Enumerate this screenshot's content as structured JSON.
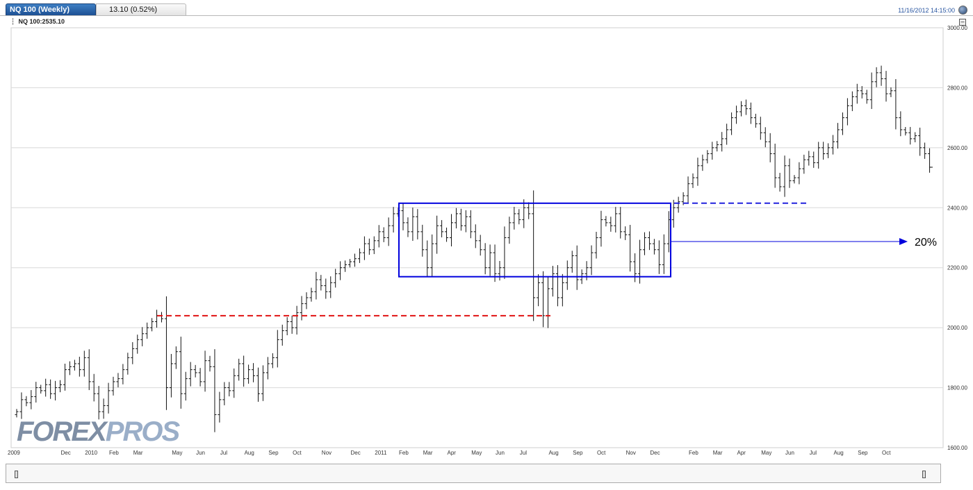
{
  "header": {
    "tab_title": "NQ 100 (Weekly)",
    "tab_change": "13.10 (0.52%)",
    "datetime": "11/16/2012 14:15:00",
    "symbol_label": "NQ 100:2535.10"
  },
  "logo": {
    "part1": "FOREX",
    "part2": "PROS"
  },
  "annotation": {
    "label": "20%"
  },
  "colors": {
    "box": "#0000dd",
    "red_dashed": "#e01010",
    "blue_dashed": "#2020dd",
    "bars": "#111111",
    "grid": "#d8d8d8",
    "nav_fill": "#7892d8",
    "nav_line": "#1f44c0"
  },
  "chart_data": {
    "type": "ohlc-bar",
    "title": "NQ 100 (Weekly)",
    "ylim": [
      1600,
      3000
    ],
    "y_ticks": [
      1600,
      1800,
      2000,
      2200,
      2400,
      2600,
      2800,
      3000
    ],
    "y_tick_labels": [
      "1600.00",
      "1800.00",
      "2000.00",
      "2200.00",
      "2400.00",
      "2600.00",
      "2800.00",
      "3000.00"
    ],
    "x_labels": [
      {
        "label": "2009",
        "week": 0
      },
      {
        "label": "Dec",
        "week": 10
      },
      {
        "label": "2010",
        "week": 15
      },
      {
        "label": "Feb",
        "week": 20
      },
      {
        "label": "Mar",
        "week": 25
      },
      {
        "label": "May",
        "week": 33
      },
      {
        "label": "Jun",
        "week": 38
      },
      {
        "label": "Jul",
        "week": 43
      },
      {
        "label": "Aug",
        "week": 48
      },
      {
        "label": "Sep",
        "week": 53
      },
      {
        "label": "Oct",
        "week": 58
      },
      {
        "label": "Nov",
        "week": 64
      },
      {
        "label": "Dec",
        "week": 70
      },
      {
        "label": "2011",
        "week": 75
      },
      {
        "label": "Feb",
        "week": 80
      },
      {
        "label": "Mar",
        "week": 85
      },
      {
        "label": "Apr",
        "week": 90
      },
      {
        "label": "May",
        "week": 95
      },
      {
        "label": "Jun",
        "week": 100
      },
      {
        "label": "Jul",
        "week": 105
      },
      {
        "label": "Aug",
        "week": 111
      },
      {
        "label": "Sep",
        "week": 116
      },
      {
        "label": "Oct",
        "week": 121
      },
      {
        "label": "Nov",
        "week": 127
      },
      {
        "label": "Dec",
        "week": 132
      },
      {
        "label": "Feb",
        "week": 140
      },
      {
        "label": "Mar",
        "week": 145
      },
      {
        "label": "Apr",
        "week": 150
      },
      {
        "label": "May",
        "week": 155
      },
      {
        "label": "Jun",
        "week": 160
      },
      {
        "label": "Jul",
        "week": 165
      },
      {
        "label": "Aug",
        "week": 170
      },
      {
        "label": "Sep",
        "week": 175
      },
      {
        "label": "Oct",
        "week": 180
      }
    ],
    "closes": [
      1720,
      1760,
      1750,
      1770,
      1800,
      1790,
      1810,
      1780,
      1800,
      1810,
      1860,
      1870,
      1880,
      1860,
      1900,
      1820,
      1780,
      1720,
      1740,
      1790,
      1820,
      1830,
      1860,
      1900,
      1930,
      1960,
      1980,
      2000,
      2020,
      2040,
      2030,
      1800,
      1880,
      1920,
      1780,
      1830,
      1860,
      1850,
      1820,
      1890,
      1870,
      1710,
      1760,
      1800,
      1790,
      1840,
      1880,
      1830,
      1860,
      1840,
      1780,
      1850,
      1880,
      1900,
      1960,
      1990,
      2020,
      2000,
      2050,
      2080,
      2100,
      2120,
      2160,
      2140,
      2120,
      2150,
      2180,
      2200,
      2210,
      2220,
      2230,
      2250,
      2280,
      2260,
      2290,
      2320,
      2300,
      2340,
      2380,
      2390,
      2350,
      2320,
      2370,
      2320,
      2260,
      2200,
      2280,
      2340,
      2320,
      2300,
      2350,
      2380,
      2340,
      2370,
      2320,
      2290,
      2260,
      2200,
      2250,
      2180,
      2200,
      2300,
      2350,
      2380,
      2360,
      2400,
      2380,
      2100,
      2150,
      2040,
      2130,
      2180,
      2100,
      2150,
      2200,
      2240,
      2160,
      2180,
      2200,
      2250,
      2300,
      2360,
      2350,
      2340,
      2380,
      2320,
      2310,
      2220,
      2180,
      2260,
      2300,
      2280,
      2260,
      2210,
      2280,
      2360,
      2400,
      2420,
      2440,
      2480,
      2500,
      2540,
      2560,
      2580,
      2600,
      2610,
      2630,
      2660,
      2700,
      2720,
      2740,
      2730,
      2700,
      2680,
      2650,
      2620,
      2580,
      2500,
      2470,
      2540,
      2490,
      2500,
      2530,
      2560,
      2570,
      2550,
      2600,
      2580,
      2600,
      2620,
      2660,
      2700,
      2740,
      2770,
      2790,
      2780,
      2760,
      2820,
      2850,
      2830,
      2780,
      2790,
      2700,
      2660,
      2650,
      2630,
      2640,
      2600,
      2580,
      2535
    ]
  }
}
